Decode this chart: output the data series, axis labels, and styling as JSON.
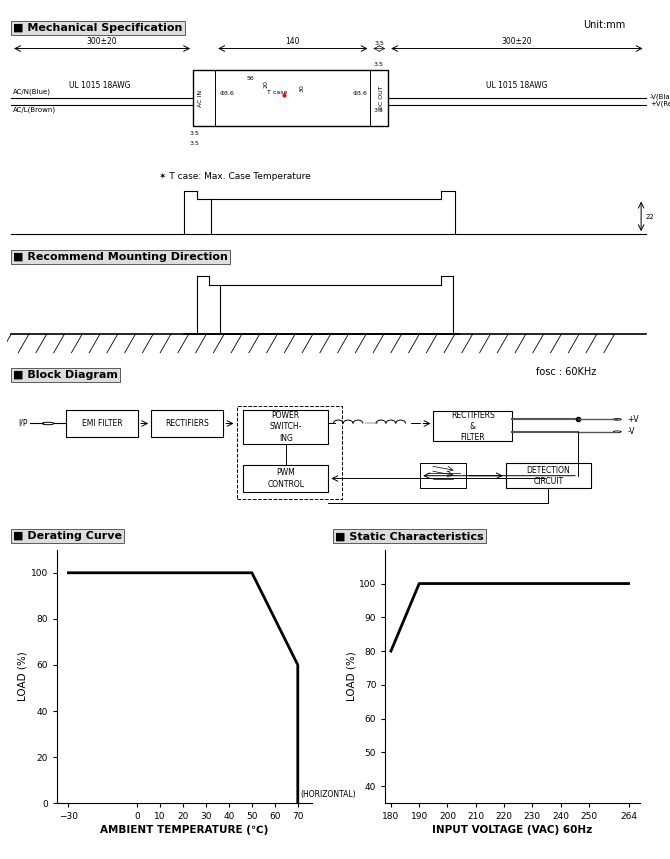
{
  "bg_color": "#ffffff",
  "text_color": "#000000",
  "unit_label": "Unit:mm",
  "fosc_label": "fosc : 60KHz",
  "tcase_note": "✶ T case: Max. Case Temperature",
  "derating_curve": {
    "x": [
      -30,
      50,
      70,
      70
    ],
    "y": [
      100,
      100,
      60,
      0
    ],
    "xlabel": "AMBIENT TEMPERATURE (℃)",
    "ylabel": "LOAD (%)",
    "xticks": [
      -30,
      0,
      10,
      20,
      30,
      40,
      50,
      60,
      70
    ],
    "yticks": [
      0,
      20,
      40,
      60,
      80,
      100
    ],
    "horiz_label": "(HORIZONTAL)",
    "horiz_x": 70.5,
    "horiz_y": 3
  },
  "static_curve": {
    "x": [
      180,
      190,
      264
    ],
    "y": [
      80,
      100,
      100
    ],
    "xlabel": "INPUT VOLTAGE (VAC) 60Hz",
    "ylabel": "LOAD (%)",
    "xticks": [
      180,
      190,
      200,
      210,
      220,
      230,
      240,
      250,
      264
    ],
    "yticks": [
      40,
      50,
      60,
      70,
      80,
      90,
      100
    ]
  }
}
